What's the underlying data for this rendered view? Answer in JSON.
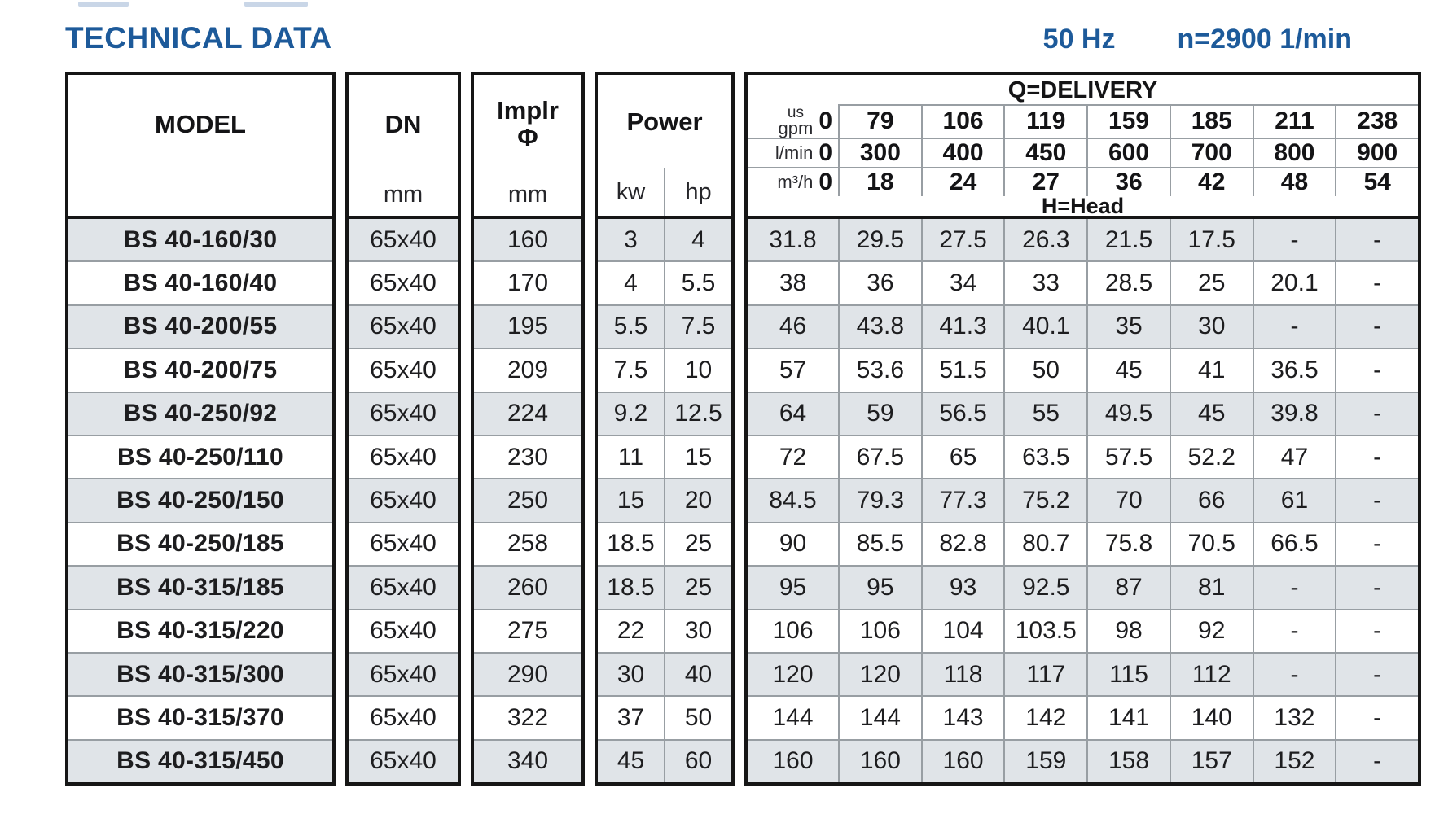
{
  "page": {
    "title": "TECHNICAL DATA",
    "frequency": "50 Hz",
    "speed": "n=2900 1/min"
  },
  "colors": {
    "accent_blue": "#1d5a9a",
    "shaded_row": "#e0e4e8",
    "border_black": "#161616",
    "grid_gray": "#989ea3"
  },
  "table": {
    "headers": {
      "model": "MODEL",
      "model_unit_blank": "",
      "dn": "DN",
      "dn_unit": "mm",
      "impeller": "Implr",
      "impeller_symbol": "Φ",
      "impeller_unit": "mm",
      "power": "Power",
      "power_kw": "kw",
      "power_hp": "hp",
      "delivery": "Q=DELIVERY",
      "head": "H=Head",
      "unit_rows": [
        {
          "unit_top": "us",
          "unit": "gpm",
          "values": [
            "0",
            "79",
            "106",
            "119",
            "159",
            "185",
            "211",
            "238"
          ]
        },
        {
          "unit": "l/min",
          "values": [
            "0",
            "300",
            "400",
            "450",
            "600",
            "700",
            "800",
            "900"
          ]
        },
        {
          "unit": "m³/h",
          "values": [
            "0",
            "18",
            "24",
            "27",
            "36",
            "42",
            "48",
            "54"
          ]
        }
      ]
    },
    "rows": [
      {
        "model": "BS 40-160/30",
        "dn": "65x40",
        "impeller": "160",
        "kw": "3",
        "hp": "4",
        "head": [
          "31.8",
          "29.5",
          "27.5",
          "26.3",
          "21.5",
          "17.5",
          "-",
          "-"
        ]
      },
      {
        "model": "BS 40-160/40",
        "dn": "65x40",
        "impeller": "170",
        "kw": "4",
        "hp": "5.5",
        "head": [
          "38",
          "36",
          "34",
          "33",
          "28.5",
          "25",
          "20.1",
          "-"
        ]
      },
      {
        "model": "BS 40-200/55",
        "dn": "65x40",
        "impeller": "195",
        "kw": "5.5",
        "hp": "7.5",
        "head": [
          "46",
          "43.8",
          "41.3",
          "40.1",
          "35",
          "30",
          "-",
          "-"
        ]
      },
      {
        "model": "BS 40-200/75",
        "dn": "65x40",
        "impeller": "209",
        "kw": "7.5",
        "hp": "10",
        "head": [
          "57",
          "53.6",
          "51.5",
          "50",
          "45",
          "41",
          "36.5",
          "-"
        ]
      },
      {
        "model": "BS 40-250/92",
        "dn": "65x40",
        "impeller": "224",
        "kw": "9.2",
        "hp": "12.5",
        "head": [
          "64",
          "59",
          "56.5",
          "55",
          "49.5",
          "45",
          "39.8",
          "-"
        ]
      },
      {
        "model": "BS 40-250/110",
        "dn": "65x40",
        "impeller": "230",
        "kw": "11",
        "hp": "15",
        "head": [
          "72",
          "67.5",
          "65",
          "63.5",
          "57.5",
          "52.2",
          "47",
          "-"
        ]
      },
      {
        "model": "BS 40-250/150",
        "dn": "65x40",
        "impeller": "250",
        "kw": "15",
        "hp": "20",
        "head": [
          "84.5",
          "79.3",
          "77.3",
          "75.2",
          "70",
          "66",
          "61",
          "-"
        ]
      },
      {
        "model": "BS 40-250/185",
        "dn": "65x40",
        "impeller": "258",
        "kw": "18.5",
        "hp": "25",
        "head": [
          "90",
          "85.5",
          "82.8",
          "80.7",
          "75.8",
          "70.5",
          "66.5",
          "-"
        ]
      },
      {
        "model": "BS 40-315/185",
        "dn": "65x40",
        "impeller": "260",
        "kw": "18.5",
        "hp": "25",
        "head": [
          "95",
          "95",
          "93",
          "92.5",
          "87",
          "81",
          "-",
          "-"
        ]
      },
      {
        "model": "BS 40-315/220",
        "dn": "65x40",
        "impeller": "275",
        "kw": "22",
        "hp": "30",
        "head": [
          "106",
          "106",
          "104",
          "103.5",
          "98",
          "92",
          "-",
          "-"
        ]
      },
      {
        "model": "BS 40-315/300",
        "dn": "65x40",
        "impeller": "290",
        "kw": "30",
        "hp": "40",
        "head": [
          "120",
          "120",
          "118",
          "117",
          "115",
          "112",
          "-",
          "-"
        ]
      },
      {
        "model": "BS 40-315/370",
        "dn": "65x40",
        "impeller": "322",
        "kw": "37",
        "hp": "50",
        "head": [
          "144",
          "144",
          "143",
          "142",
          "141",
          "140",
          "132",
          "-"
        ]
      },
      {
        "model": "BS 40-315/450",
        "dn": "65x40",
        "impeller": "340",
        "kw": "45",
        "hp": "60",
        "head": [
          "160",
          "160",
          "160",
          "159",
          "158",
          "157",
          "152",
          "-"
        ]
      }
    ]
  }
}
